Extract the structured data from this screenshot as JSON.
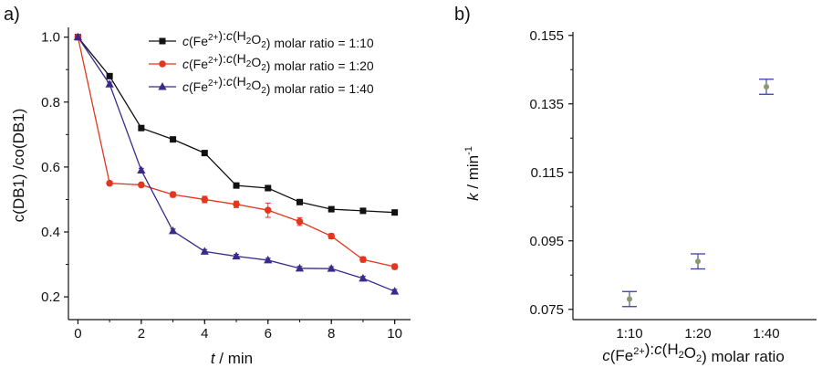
{
  "chart_data": [
    {
      "panel": "a)",
      "type": "line",
      "xlabel_var": "t",
      "xlabel_unit": " / min",
      "ylabel": "c(DB1) /co(DB1)",
      "xlim": [
        -0.3,
        10.5
      ],
      "ylim": [
        0.13,
        1.03
      ],
      "x_ticks": [
        0,
        2,
        4,
        6,
        8,
        10
      ],
      "y_ticks": [
        0.2,
        0.4,
        0.6,
        0.8,
        1.0
      ],
      "y_tick_labels": [
        "0.2",
        "0.4",
        "0.6",
        "0.8",
        "1.0"
      ],
      "grid": false,
      "legend_position": "top-right",
      "x": [
        0,
        1,
        2,
        3,
        4,
        5,
        6,
        7,
        8,
        9,
        10
      ],
      "series": [
        {
          "name": "c(Fe2+):c(H2O2) molar ratio = 1:10",
          "legend_ratio": "1:10",
          "color": "#111111",
          "marker": "square",
          "values": [
            1.0,
            0.88,
            0.72,
            0.685,
            0.643,
            0.543,
            0.535,
            0.492,
            0.47,
            0.465,
            0.46
          ],
          "errors": [
            0,
            0.005,
            0.005,
            0.005,
            0.005,
            0.005,
            0.005,
            0.005,
            0.005,
            0.005,
            0.005
          ]
        },
        {
          "name": "c(Fe2+):c(H2O2) molar ratio = 1:20",
          "legend_ratio": "1:20",
          "color": "#e4351f",
          "marker": "circle",
          "values": [
            1.0,
            0.55,
            0.545,
            0.515,
            0.5,
            0.485,
            0.467,
            0.432,
            0.387,
            0.315,
            0.293
          ],
          "errors": [
            0,
            0.006,
            0.006,
            0.008,
            0.01,
            0.01,
            0.022,
            0.012,
            0.008,
            0.008,
            0.008
          ]
        },
        {
          "name": "c(Fe2+):c(H2O2) molar ratio = 1:40",
          "legend_ratio": "1:40",
          "color": "#3b2a8c",
          "marker": "triangle",
          "values": [
            1.0,
            0.855,
            0.59,
            0.403,
            0.34,
            0.325,
            0.313,
            0.288,
            0.287,
            0.257,
            0.217
          ],
          "errors": [
            0,
            0.006,
            0.006,
            0.006,
            0.006,
            0.006,
            0.006,
            0.006,
            0.006,
            0.006,
            0.006
          ]
        }
      ],
      "legend_prefix_a": "c",
      "legend_prefix_b": "(Fe",
      "legend_sup": "2+",
      "legend_mid_a": "):",
      "legend_mid_b": "c",
      "legend_mid_c": "(H",
      "legend_sub1": "2",
      "legend_mid_d": "O",
      "legend_sub2": "2",
      "legend_suffix": ") molar ratio = "
    },
    {
      "panel": "b)",
      "type": "scatter",
      "xlabel": "c(Fe2+):c(H2O2) molar ratio",
      "ylabel": "k / min-1",
      "categories": [
        "1:10",
        "1:20",
        "1:40"
      ],
      "values": [
        0.078,
        0.089,
        0.14
      ],
      "errors": [
        0.0022,
        0.0022,
        0.0022
      ],
      "ylim": [
        0.072,
        0.156
      ],
      "y_ticks": [
        0.075,
        0.095,
        0.115,
        0.135,
        0.155
      ],
      "y_tick_labels": [
        "0.075",
        "0.095",
        "0.115",
        "0.135",
        "0.155"
      ],
      "grid": false,
      "marker_color": "#8a9a6e",
      "errorbar_color": "#3b3fa0",
      "xlabel_parts": [
        "c",
        "(Fe",
        "2+",
        "):",
        "c",
        "(H",
        "2",
        "O",
        "2",
        ") molar ratio"
      ],
      "ylabel_var": "k",
      "ylabel_unit": " / min",
      "ylabel_sup": "-1"
    }
  ]
}
